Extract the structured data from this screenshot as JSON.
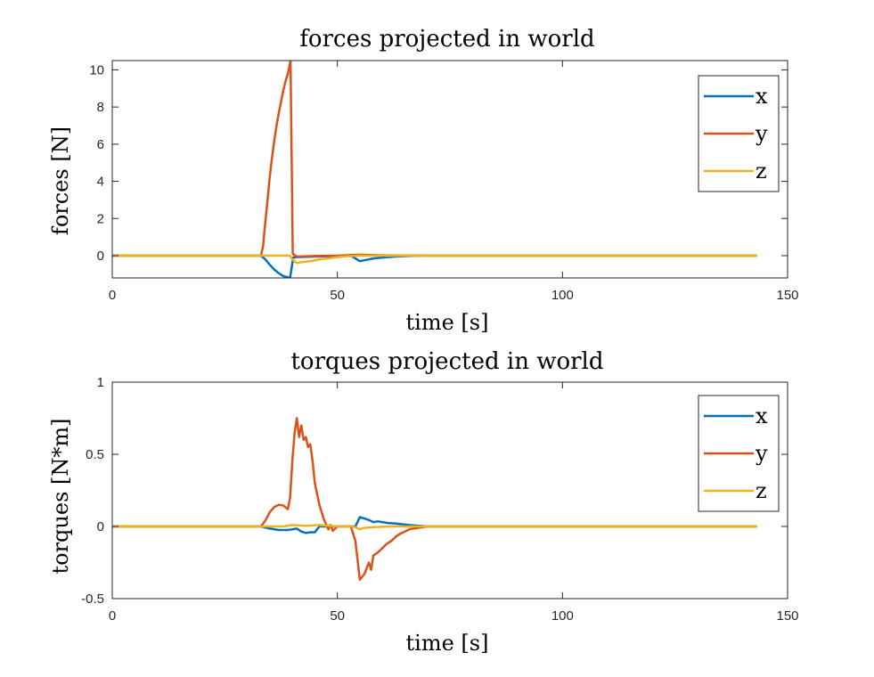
{
  "chart_data": [
    {
      "type": "line",
      "title": "forces projected in world",
      "xlabel": "time [s]",
      "ylabel": "forces [N]",
      "xlim": [
        0,
        150
      ],
      "ylim": [
        -1.2,
        10.5
      ],
      "xticks": [
        0,
        50,
        100,
        150
      ],
      "yticks": [
        0,
        2,
        4,
        6,
        8,
        10
      ],
      "grid": false,
      "legend_position": "top-right",
      "series": [
        {
          "name": "x",
          "color": "#0072BD",
          "points": [
            [
              0,
              0
            ],
            [
              33,
              0
            ],
            [
              34,
              -0.2
            ],
            [
              35,
              -0.5
            ],
            [
              36,
              -0.75
            ],
            [
              37,
              -0.95
            ],
            [
              38,
              -1.1
            ],
            [
              39.5,
              -1.2
            ],
            [
              40.2,
              -0.1
            ],
            [
              41,
              -0.08
            ],
            [
              45,
              -0.05
            ],
            [
              50,
              -0.02
            ],
            [
              53,
              0
            ],
            [
              55,
              -0.3
            ],
            [
              56,
              -0.25
            ],
            [
              58,
              -0.15
            ],
            [
              60,
              -0.1
            ],
            [
              63,
              -0.05
            ],
            [
              66,
              -0.02
            ],
            [
              70,
              0
            ],
            [
              143,
              0
            ]
          ]
        },
        {
          "name": "y",
          "color": "#D95319",
          "points": [
            [
              0,
              0
            ],
            [
              33,
              0
            ],
            [
              33.5,
              0.5
            ],
            [
              34,
              1.8
            ],
            [
              34.5,
              3.0
            ],
            [
              35,
              4.3
            ],
            [
              35.5,
              5.3
            ],
            [
              36,
              6.2
            ],
            [
              36.5,
              7.0
            ],
            [
              37,
              7.7
            ],
            [
              37.5,
              8.3
            ],
            [
              38,
              8.9
            ],
            [
              38.5,
              9.4
            ],
            [
              39,
              9.8
            ],
            [
              39.6,
              10.5
            ],
            [
              40.1,
              0.1
            ],
            [
              41,
              -0.05
            ],
            [
              45,
              -0.02
            ],
            [
              50,
              0
            ],
            [
              55,
              0.05
            ],
            [
              60,
              0.02
            ],
            [
              70,
              0
            ],
            [
              143,
              0
            ]
          ]
        },
        {
          "name": "z",
          "color": "#EDB120",
          "points": [
            [
              0,
              0
            ],
            [
              39.5,
              0
            ],
            [
              40,
              -0.2
            ],
            [
              41,
              -0.4
            ],
            [
              42,
              -0.35
            ],
            [
              44,
              -0.3
            ],
            [
              46,
              -0.2
            ],
            [
              48,
              -0.15
            ],
            [
              50,
              -0.08
            ],
            [
              52,
              -0.04
            ],
            [
              55,
              0
            ],
            [
              143,
              0
            ]
          ]
        }
      ]
    },
    {
      "type": "line",
      "title": "torques projected in world",
      "xlabel": "time [s]",
      "ylabel": "torques [N*m]",
      "xlim": [
        0,
        150
      ],
      "ylim": [
        -0.5,
        1
      ],
      "xticks": [
        0,
        50,
        100,
        150
      ],
      "yticks": [
        -0.5,
        0,
        0.5,
        1
      ],
      "grid": false,
      "legend_position": "top-right",
      "series": [
        {
          "name": "x",
          "color": "#0072BD",
          "points": [
            [
              0,
              0
            ],
            [
              33,
              0
            ],
            [
              35,
              -0.015
            ],
            [
              37,
              -0.025
            ],
            [
              39,
              -0.025
            ],
            [
              41,
              -0.015
            ],
            [
              42,
              -0.035
            ],
            [
              43,
              -0.045
            ],
            [
              44,
              -0.04
            ],
            [
              45,
              -0.04
            ],
            [
              46,
              0
            ],
            [
              50,
              0
            ],
            [
              54,
              0
            ],
            [
              55,
              0.065
            ],
            [
              56,
              0.055
            ],
            [
              57,
              0.045
            ],
            [
              58,
              0.03
            ],
            [
              59,
              0.035
            ],
            [
              61,
              0.025
            ],
            [
              63,
              0.02
            ],
            [
              66,
              0.01
            ],
            [
              70,
              0
            ],
            [
              143,
              0
            ]
          ]
        },
        {
          "name": "y",
          "color": "#D95319",
          "points": [
            [
              0,
              0
            ],
            [
              33,
              0
            ],
            [
              34,
              0.04
            ],
            [
              35,
              0.1
            ],
            [
              36,
              0.135
            ],
            [
              37,
              0.15
            ],
            [
              38,
              0.145
            ],
            [
              39,
              0.12
            ],
            [
              39.5,
              0.2
            ],
            [
              40,
              0.45
            ],
            [
              40.5,
              0.65
            ],
            [
              41,
              0.75
            ],
            [
              41.5,
              0.62
            ],
            [
              42,
              0.7
            ],
            [
              42.5,
              0.6
            ],
            [
              43,
              0.62
            ],
            [
              43.5,
              0.55
            ],
            [
              44,
              0.57
            ],
            [
              44.5,
              0.45
            ],
            [
              45,
              0.3
            ],
            [
              46,
              0.15
            ],
            [
              47,
              0.05
            ],
            [
              48,
              -0.02
            ],
            [
              48.5,
              0.01
            ],
            [
              49,
              -0.03
            ],
            [
              50,
              0
            ],
            [
              51,
              0
            ],
            [
              53,
              0
            ],
            [
              54,
              -0.1
            ],
            [
              55,
              -0.37
            ],
            [
              56,
              -0.33
            ],
            [
              57,
              -0.25
            ],
            [
              57.5,
              -0.3
            ],
            [
              58,
              -0.2
            ],
            [
              59,
              -0.18
            ],
            [
              60,
              -0.15
            ],
            [
              61,
              -0.12
            ],
            [
              62,
              -0.1
            ],
            [
              63,
              -0.07
            ],
            [
              64,
              -0.05
            ],
            [
              66,
              -0.02
            ],
            [
              70,
              0
            ],
            [
              143,
              0
            ]
          ]
        },
        {
          "name": "z",
          "color": "#EDB120",
          "points": [
            [
              0,
              0
            ],
            [
              38,
              0
            ],
            [
              40,
              0.01
            ],
            [
              43,
              0.005
            ],
            [
              46,
              0.01
            ],
            [
              50,
              0
            ],
            [
              53,
              0
            ],
            [
              54,
              -0.005
            ],
            [
              55,
              -0.02
            ],
            [
              56,
              -0.01
            ],
            [
              58,
              -0.005
            ],
            [
              62,
              0
            ],
            [
              143,
              0
            ]
          ]
        }
      ]
    }
  ]
}
